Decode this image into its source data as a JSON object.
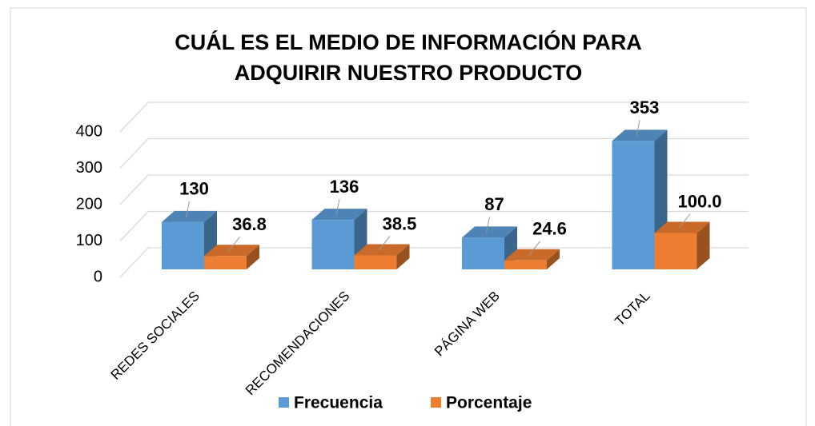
{
  "chart_data": {
    "type": "bar3d",
    "title": [
      "CUÁL ES EL MEDIO DE INFORMACIÓN PARA",
      "ADQUIRIR NUESTRO PRODUCTO"
    ],
    "categories": [
      "REDES SOCIALES",
      "RECOMENDACIONES",
      "PÁGINA WEB",
      "TOTAL"
    ],
    "series": [
      {
        "name": "Frecuencia",
        "color": "#5b9bd5",
        "values": [
          130,
          136,
          87,
          353
        ]
      },
      {
        "name": "Porcentaje",
        "color": "#ed7d31",
        "values": [
          36.8,
          38.5,
          24.6,
          100.0
        ],
        "value_labels": [
          "36.8",
          "38.5",
          "24.6",
          "100.0"
        ]
      }
    ],
    "ylim": [
      0,
      400
    ],
    "yticks": [
      0,
      100,
      200,
      300,
      400
    ],
    "grid": true,
    "legend": "bottom"
  }
}
